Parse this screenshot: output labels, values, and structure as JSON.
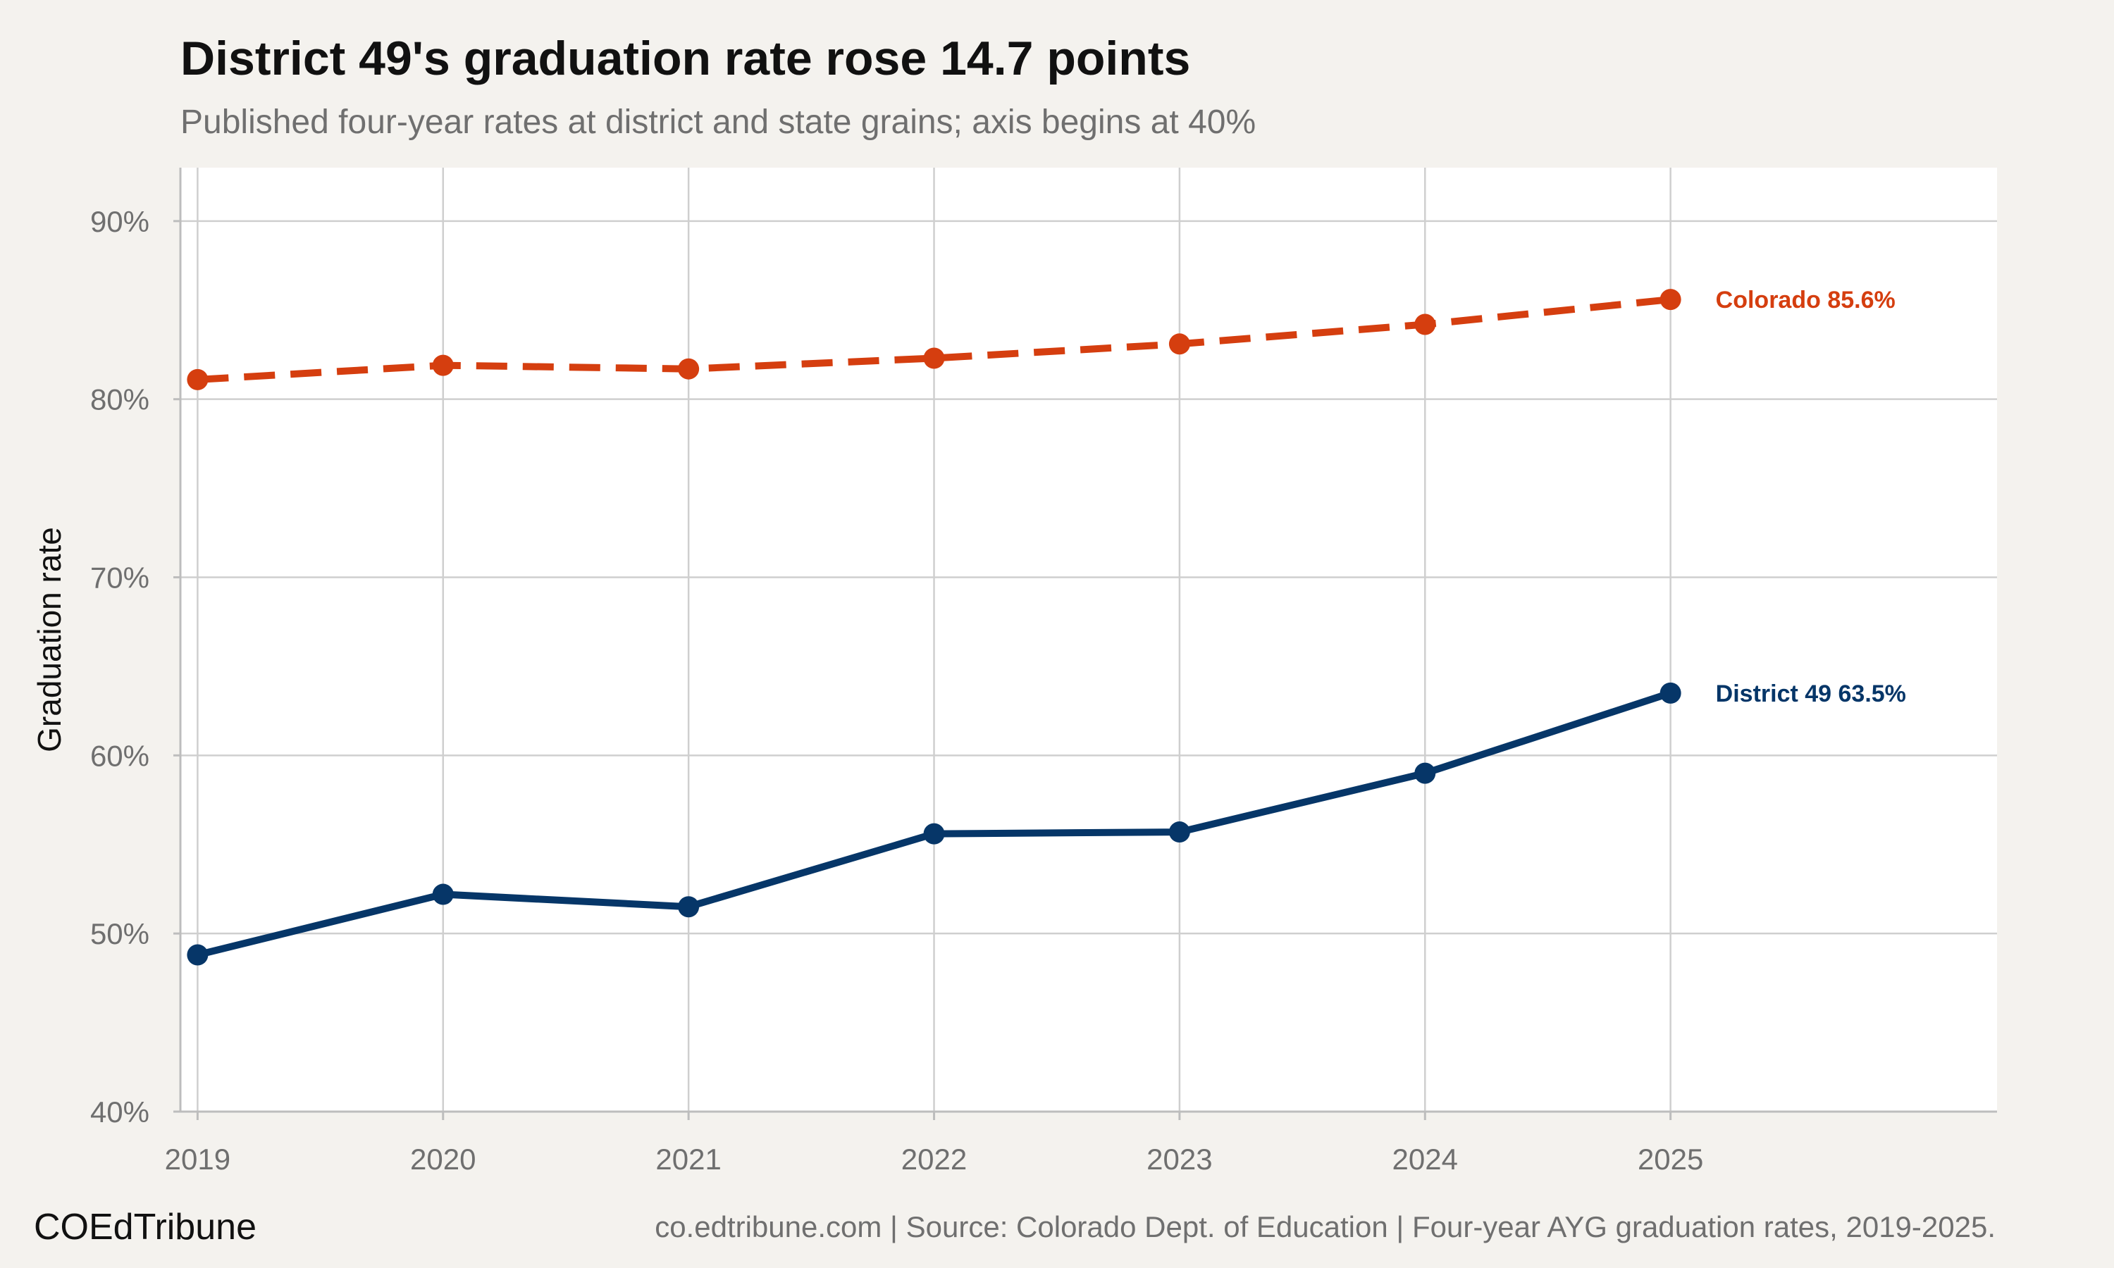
{
  "chart_data": {
    "type": "line",
    "title": "District 49's graduation rate rose 14.7 points",
    "subtitle": "Published four-year rates at district and state grains; axis begins at 40%",
    "xlabel": "",
    "ylabel": "Graduation rate",
    "x": [
      2019,
      2020,
      2021,
      2022,
      2023,
      2024,
      2025
    ],
    "x_tick_labels": [
      "2019",
      "2020",
      "2021",
      "2022",
      "2023",
      "2024",
      "2025"
    ],
    "ylim": [
      40,
      93
    ],
    "xlim": [
      2018.93,
      2026.33
    ],
    "y_ticks": [
      40,
      50,
      60,
      70,
      80,
      90
    ],
    "y_tick_labels": [
      "40%",
      "50%",
      "60%",
      "70%",
      "80%",
      "90%"
    ],
    "grid": true,
    "legend": "none (direct end labels)",
    "series": [
      {
        "name": "Colorado",
        "values": [
          81.1,
          81.9,
          81.7,
          82.3,
          83.1,
          84.2,
          85.6
        ],
        "color": "#d53e0f",
        "dash": true,
        "end_label": "Colorado  85.6%"
      },
      {
        "name": "District 49",
        "values": [
          48.8,
          52.2,
          51.5,
          55.6,
          55.7,
          59.0,
          63.5
        ],
        "color": "#063668",
        "dash": false,
        "end_label": "District 49  63.5%"
      }
    ]
  },
  "footer": {
    "brand": "COEdTribune",
    "source": "co.edtribune.com | Source: Colorado Dept. of Education | Four-year AYG graduation rates, 2019-2025."
  }
}
